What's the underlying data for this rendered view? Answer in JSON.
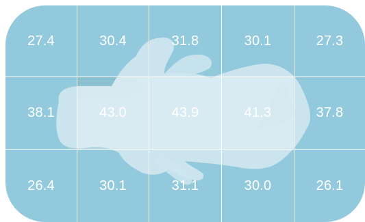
{
  "pressure_map": {
    "rows": [
      [
        "27.4",
        "30.4",
        "31.8",
        "30.1",
        "27.3"
      ],
      [
        "38.1",
        "43.0",
        "43.9",
        "41.3",
        "37.8"
      ],
      [
        "26.4",
        "30.1",
        "31.1",
        "30.0",
        "26.1"
      ]
    ],
    "colors": {
      "mat": "#93c9dc",
      "silhouette_light": "#cfe6ee",
      "silhouette_dark": "#5aa6bd"
    }
  }
}
